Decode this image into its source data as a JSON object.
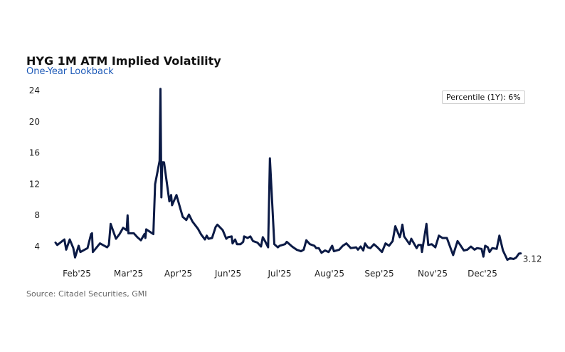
{
  "chart_data": {
    "type": "line",
    "title": "HYG 1M ATM Implied Volatility",
    "subtitle": "One-Year Lookback",
    "source": "Source: Citadel Securities, GMI",
    "annotation": "Percentile (1Y): 6%",
    "last_value_label": "3.12",
    "ylim": [
      0,
      25
    ],
    "grid": false,
    "y_ticks": [
      "4",
      "8",
      "12",
      "16",
      "20",
      "24"
    ],
    "y_tick_values": [
      4,
      8,
      12,
      16,
      20,
      24
    ],
    "x_ticks": [
      {
        "label": "Feb'25",
        "x": 12
      },
      {
        "label": "Mar'25",
        "x": 41
      },
      {
        "label": "Apr'25",
        "x": 69
      },
      {
        "label": "Jun'25",
        "x": 97
      },
      {
        "label": "Jul'25",
        "x": 126
      },
      {
        "label": "Aug'25",
        "x": 154
      },
      {
        "label": "Sep'25",
        "x": 182
      },
      {
        "label": "Nov'25",
        "x": 212
      },
      {
        "label": "Dec'25",
        "x": 240
      }
    ],
    "line_color": "#0b1a45",
    "series": [
      {
        "name": "HYG 1M ATM IV",
        "points": [
          [
            0,
            4.5
          ],
          [
            1,
            4.2
          ],
          [
            5,
            4.9
          ],
          [
            6,
            3.6
          ],
          [
            8,
            4.9
          ],
          [
            10,
            3.8
          ],
          [
            11,
            2.6
          ],
          [
            13,
            4.1
          ],
          [
            14,
            3.3
          ],
          [
            18,
            3.8
          ],
          [
            20,
            5.6
          ],
          [
            20.5,
            5.7
          ],
          [
            21,
            3.3
          ],
          [
            25,
            4.4
          ],
          [
            29,
            3.9
          ],
          [
            30,
            4.2
          ],
          [
            31,
            6.9
          ],
          [
            34,
            5.0
          ],
          [
            36,
            5.6
          ],
          [
            38,
            6.4
          ],
          [
            40,
            6.1
          ],
          [
            40.5,
            8.0
          ],
          [
            41,
            5.7
          ],
          [
            44,
            5.7
          ],
          [
            46,
            5.2
          ],
          [
            48,
            4.8
          ],
          [
            50,
            5.6
          ],
          [
            50.5,
            5.1
          ],
          [
            51,
            6.2
          ],
          [
            55,
            5.6
          ],
          [
            56,
            12
          ],
          [
            58.5,
            15
          ],
          [
            59,
            24.2
          ],
          [
            59.5,
            10.3
          ],
          [
            60,
            14.8
          ],
          [
            61,
            14.8
          ],
          [
            64,
            9.8
          ],
          [
            65,
            10.6
          ],
          [
            65.5,
            9.3
          ],
          [
            68,
            10.6
          ],
          [
            70,
            9
          ],
          [
            71.5,
            7.8
          ],
          [
            73.5,
            7.4
          ],
          [
            75,
            8.1
          ],
          [
            77,
            7.2
          ],
          [
            80,
            6.3
          ],
          [
            82,
            5.5
          ],
          [
            84,
            4.9
          ],
          [
            85,
            5.4
          ],
          [
            86,
            5.0
          ],
          [
            88,
            5.1
          ],
          [
            90,
            6.5
          ],
          [
            91,
            6.8
          ],
          [
            94,
            6.1
          ],
          [
            96,
            5.0
          ],
          [
            97,
            5.2
          ],
          [
            99,
            5.3
          ],
          [
            99.5,
            4.4
          ],
          [
            101,
            4.9
          ],
          [
            102,
            4.3
          ],
          [
            104,
            4.3
          ],
          [
            105.5,
            4.6
          ],
          [
            106,
            5.3
          ],
          [
            108,
            5.1
          ],
          [
            109.5,
            5.3
          ],
          [
            111,
            4.7
          ],
          [
            113.5,
            4.5
          ],
          [
            115.5,
            4.0
          ],
          [
            116.5,
            5.2
          ],
          [
            118,
            4.6
          ],
          [
            119.5,
            3.9
          ],
          [
            120.5,
            15.3
          ],
          [
            123,
            4.3
          ],
          [
            125,
            3.9
          ],
          [
            126,
            4.1
          ],
          [
            129,
            4.3
          ],
          [
            130,
            4.6
          ],
          [
            133,
            4.0
          ],
          [
            135.5,
            3.6
          ],
          [
            138,
            3.4
          ],
          [
            139.5,
            3.6
          ],
          [
            141,
            4.8
          ],
          [
            143,
            4.3
          ],
          [
            145.5,
            4.1
          ],
          [
            146.5,
            3.8
          ],
          [
            148,
            3.8
          ],
          [
            149.5,
            3.2
          ],
          [
            151.5,
            3.5
          ],
          [
            153.5,
            3.3
          ],
          [
            155.5,
            4.1
          ],
          [
            156.5,
            3.4
          ],
          [
            159.5,
            3.6
          ],
          [
            161.5,
            4.1
          ],
          [
            163.5,
            4.4
          ],
          [
            166,
            3.8
          ],
          [
            169,
            3.9
          ],
          [
            170,
            3.6
          ],
          [
            171.5,
            4.0
          ],
          [
            173,
            3.5
          ],
          [
            174,
            4.4
          ],
          [
            175.5,
            3.9
          ],
          [
            177,
            3.8
          ],
          [
            179,
            4.3
          ],
          [
            181,
            3.9
          ],
          [
            183.5,
            3.3
          ],
          [
            185.5,
            4.4
          ],
          [
            187.5,
            4.1
          ],
          [
            189.5,
            4.7
          ],
          [
            191,
            6.6
          ],
          [
            193.5,
            5.2
          ],
          [
            194,
            5.6
          ],
          [
            195,
            6.8
          ],
          [
            196,
            5.3
          ],
          [
            199,
            4.3
          ],
          [
            200,
            5.0
          ],
          [
            203,
            3.8
          ],
          [
            204,
            4.2
          ],
          [
            205.5,
            4.2
          ],
          [
            206,
            3.3
          ],
          [
            208.5,
            6.9
          ],
          [
            209.5,
            4.2
          ],
          [
            211.5,
            4.3
          ],
          [
            213.5,
            3.9
          ],
          [
            215.5,
            5.4
          ],
          [
            217.5,
            5.1
          ],
          [
            220,
            5.1
          ],
          [
            223.5,
            2.9
          ],
          [
            226,
            4.7
          ],
          [
            227.5,
            4.2
          ],
          [
            229.5,
            3.5
          ],
          [
            231.5,
            3.6
          ],
          [
            233.5,
            4.0
          ],
          [
            235.5,
            3.6
          ],
          [
            237,
            3.8
          ],
          [
            239.5,
            3.7
          ],
          [
            240.5,
            2.7
          ],
          [
            241.5,
            4.1
          ],
          [
            243,
            3.9
          ],
          [
            244,
            3.3
          ],
          [
            245.5,
            3.8
          ],
          [
            248,
            3.7
          ],
          [
            249.5,
            5.4
          ],
          [
            251.5,
            3.5
          ],
          [
            254,
            2.3
          ],
          [
            255.5,
            2.5
          ],
          [
            257.5,
            2.4
          ],
          [
            259,
            2.6
          ],
          [
            260.5,
            3.1
          ],
          [
            261.5,
            3.12
          ]
        ]
      }
    ]
  }
}
